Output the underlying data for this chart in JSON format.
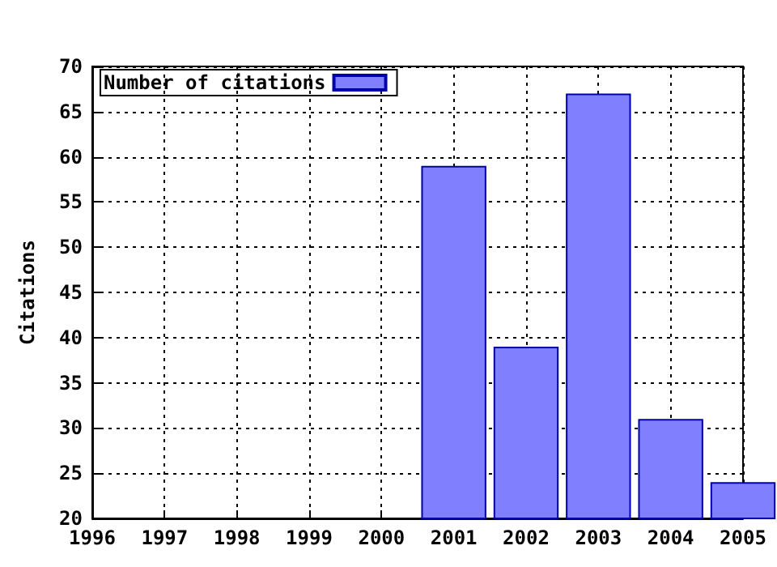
{
  "chart_data": {
    "type": "bar",
    "ylabel": "Citations",
    "x": [
      2001,
      2002,
      2003,
      2004,
      2005
    ],
    "series": [
      {
        "name": "Number of citations",
        "color": "#8080ff",
        "values": [
          59,
          39,
          67,
          31,
          24
        ]
      }
    ],
    "xlim": [
      1996,
      2005
    ],
    "xticks": [
      1996,
      1997,
      1998,
      1999,
      2000,
      2001,
      2002,
      2003,
      2004,
      2005
    ],
    "ylim": [
      20,
      70
    ],
    "yticks": [
      20,
      25,
      30,
      35,
      40,
      45,
      50,
      55,
      60,
      65,
      70
    ],
    "grid": true,
    "legend": "top left"
  }
}
